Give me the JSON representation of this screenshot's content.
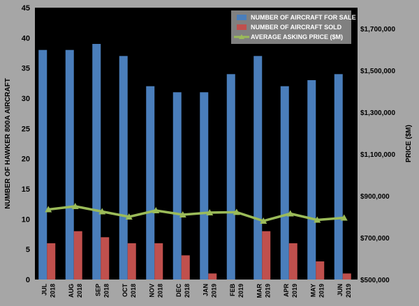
{
  "chart_data": {
    "type": "bar",
    "categories": [
      [
        "JUL",
        "2018"
      ],
      [
        "AUG",
        "2018"
      ],
      [
        "SEP",
        "2018"
      ],
      [
        "OCT",
        "2018"
      ],
      [
        "NOV",
        "2018"
      ],
      [
        "DEC",
        "2018"
      ],
      [
        "JAN",
        "2019"
      ],
      [
        "FEB",
        "2019"
      ],
      [
        "MAR",
        "2019"
      ],
      [
        "APR",
        "2019"
      ],
      [
        "MAY",
        "2019"
      ],
      [
        "JUN",
        "2019"
      ]
    ],
    "series": [
      {
        "name": "NUMBER OF AIRCRAFT FOR SALE",
        "type": "bar",
        "axis": "left",
        "color": "#4a7ebb",
        "values": [
          38,
          38,
          39,
          37,
          32,
          31,
          31,
          34,
          37,
          32,
          33,
          34
        ]
      },
      {
        "name": "NUMBER OF AIRCRAFT SOLD",
        "type": "bar",
        "axis": "left",
        "color": "#c0504d",
        "values": [
          6,
          8,
          7,
          6,
          6,
          4,
          1,
          0,
          8,
          6,
          3,
          1
        ]
      },
      {
        "name": "AVERAGE ASKING PRICE ($M)",
        "type": "line",
        "axis": "right",
        "color": "#9bbb59",
        "values": [
          835000,
          850000,
          825000,
          800000,
          830000,
          810000,
          820000,
          822000,
          780000,
          815000,
          785000,
          795000
        ]
      }
    ],
    "ylabel": "NUMBER OF HAWKER 800A AIRCRAFT",
    "y2label": "PRICE ($M)",
    "ylim": [
      0,
      45
    ],
    "yticks": [
      0,
      5,
      10,
      15,
      20,
      25,
      30,
      35,
      40,
      45
    ],
    "y2lim": [
      500000,
      1800000
    ],
    "y2ticks": [
      500000,
      700000,
      900000,
      1100000,
      1300000,
      1500000,
      1700000
    ],
    "y2ticklabels": [
      "$500,000",
      "$700,000",
      "$900,000",
      "$1,100,000",
      "$1,300,000",
      "$1,500,000",
      "$1,700,000"
    ],
    "legend": "top-right",
    "grid": false
  },
  "colors": {
    "outer_background": "#a6a6a6",
    "plot_background": "#000000",
    "legend_background": "#808080",
    "legend_text": "#ffffff"
  }
}
